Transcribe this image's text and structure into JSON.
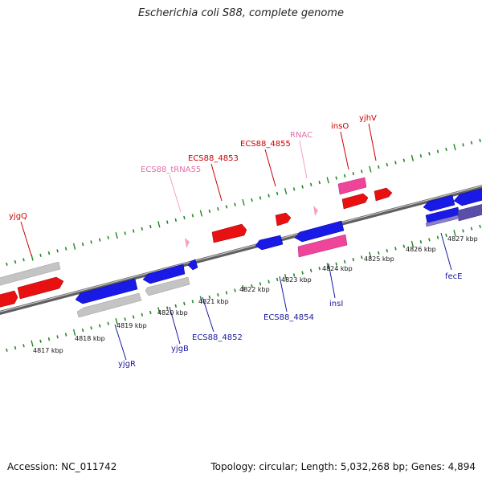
{
  "title": "Escherichia coli S88, complete genome",
  "footer": {
    "accession": "Accession: NC_011742",
    "summary": "Topology: circular; Length: 5,032,268 bp; Genes: 4,894"
  },
  "colors": {
    "forward": "#ee1111",
    "reverse": "#1a1ae6",
    "rna": "#ee4499",
    "trna": "#f7a0c8",
    "pseudo": "#c0c0c0",
    "multi": "#5a4fa8",
    "backbone": "#808080",
    "ticks": "#228822",
    "label_forward": "#cc0000",
    "label_reverse": "#1a1aa0",
    "label_rna": "#e070a8"
  },
  "axis": {
    "ticks_kbp": [
      4817,
      4818,
      4819,
      4820,
      4821,
      4822,
      4823,
      4824,
      4825,
      4826,
      4827
    ],
    "tick_labels": [
      "4817 kbp",
      "4818 kbp",
      "4819 kbp",
      "4820 kbp",
      "4821 kbp",
      "4822 kbp",
      "4823 kbp",
      "4824 kbp",
      "4825 kbp",
      "4826 kbp",
      "4827 kbp"
    ]
  },
  "gene_labels": [
    {
      "text": "yjgQ",
      "type": "forward"
    },
    {
      "text": "ECS88_tRNA55",
      "type": "trna"
    },
    {
      "text": "ECS88_4853",
      "type": "forward"
    },
    {
      "text": "ECS88_4855",
      "type": "forward"
    },
    {
      "text": "RNAC",
      "type": "trna"
    },
    {
      "text": "insO",
      "type": "forward"
    },
    {
      "text": "yjhV",
      "type": "forward"
    },
    {
      "text": "yjgR",
      "type": "reverse"
    },
    {
      "text": "yjgB",
      "type": "reverse"
    },
    {
      "text": "ECS88_4852",
      "type": "reverse"
    },
    {
      "text": "ECS88_4854",
      "type": "reverse"
    },
    {
      "text": "insI",
      "type": "reverse"
    },
    {
      "text": "fecE",
      "type": "reverse"
    }
  ]
}
